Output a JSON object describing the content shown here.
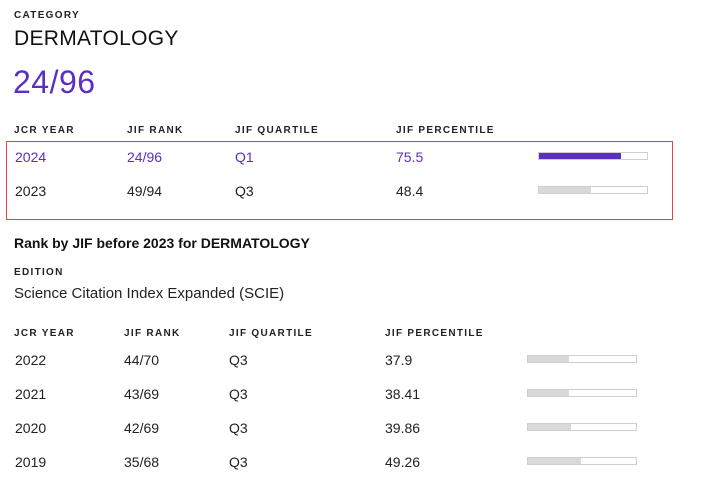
{
  "category": {
    "label": "CATEGORY",
    "name": "DERMATOLOGY",
    "rank": "24/96"
  },
  "current_table": {
    "headers": [
      "JCR YEAR",
      "JIF RANK",
      "JIF QUARTILE",
      "JIF PERCENTILE"
    ],
    "rows": [
      {
        "year": "2024",
        "rank": "24/96",
        "quartile": "Q1",
        "percentile": "75.5",
        "percentile_value": 75.5,
        "highlighted": true
      },
      {
        "year": "2023",
        "rank": "49/94",
        "quartile": "Q3",
        "percentile": "48.4",
        "percentile_value": 48.4,
        "highlighted": false
      }
    ]
  },
  "history": {
    "title": "Rank by JIF before 2023 for DERMATOLOGY",
    "edition_label": "EDITION",
    "edition_value": "Science Citation Index Expanded (SCIE)",
    "headers": [
      "JCR YEAR",
      "JIF RANK",
      "JIF QUARTILE",
      "JIF PERCENTILE"
    ],
    "rows": [
      {
        "year": "2022",
        "rank": "44/70",
        "quartile": "Q3",
        "percentile": "37.9",
        "percentile_value": 37.9
      },
      {
        "year": "2021",
        "rank": "43/69",
        "quartile": "Q3",
        "percentile": "38.41",
        "percentile_value": 38.41
      },
      {
        "year": "2020",
        "rank": "42/69",
        "quartile": "Q3",
        "percentile": "39.86",
        "percentile_value": 39.86
      },
      {
        "year": "2019",
        "rank": "35/68",
        "quartile": "Q3",
        "percentile": "49.26",
        "percentile_value": 49.26
      }
    ]
  },
  "colors": {
    "accent": "#5b2fc2",
    "highlight_border": "#e0454f",
    "bar_track": "#d9d9d9"
  }
}
